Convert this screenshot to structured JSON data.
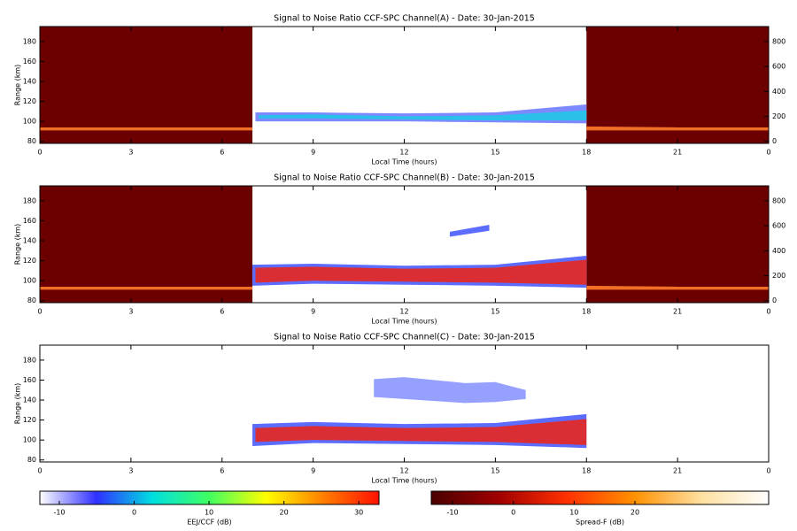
{
  "chart_data": [
    {
      "type": "heatmap",
      "title": "Signal to Noise Ratio CCF-SPC Channel(A) - Date: 30-Jan-2015",
      "xlabel": "Local Time (hours)",
      "ylabel": "Range (km)",
      "xlim": [
        0,
        24
      ],
      "xticks": [
        0,
        3,
        6,
        9,
        12,
        15,
        18,
        21,
        {
          "value": 24,
          "label": "0"
        }
      ],
      "ylim": [
        78,
        195
      ],
      "yticks": [
        80,
        100,
        120,
        140,
        160,
        180
      ],
      "y2lim": [
        -16,
        920
      ],
      "y2ticks": [
        0,
        200,
        400,
        600,
        800
      ],
      "regions": [
        {
          "x": [
            0,
            7
          ],
          "color": "#6b0000"
        },
        {
          "x": [
            18,
            24
          ],
          "color": "#6b0000"
        }
      ],
      "bands": [
        {
          "color": "#ff7a2a",
          "x": [
            0,
            3,
            7
          ],
          "lower": [
            91,
            91,
            91
          ],
          "upper": [
            94,
            94,
            94
          ]
        },
        {
          "color": "#ff7a2a",
          "x": [
            18,
            21,
            24
          ],
          "lower": [
            91,
            91,
            91
          ],
          "upper": [
            95,
            94,
            94
          ]
        },
        {
          "color": "#6f7cff",
          "x": [
            7.1,
            9,
            12,
            15,
            18
          ],
          "lower": [
            100,
            100,
            100,
            99,
            98
          ],
          "upper": [
            109,
            109,
            108,
            109,
            117
          ]
        },
        {
          "color": "#20c8e8",
          "x": [
            7.2,
            9,
            12,
            15,
            18
          ],
          "lower": [
            103,
            103,
            102,
            101,
            101
          ],
          "upper": [
            106,
            107,
            105,
            106,
            111
          ]
        }
      ]
    },
    {
      "type": "heatmap",
      "title": "Signal to Noise Ratio CCF-SPC Channel(B) - Date: 30-Jan-2015",
      "xlabel": "Local Time (hours)",
      "ylabel": "Range (km)",
      "xlim": [
        0,
        24
      ],
      "xticks": [
        0,
        3,
        6,
        9,
        12,
        15,
        18,
        21,
        {
          "value": 24,
          "label": "0"
        }
      ],
      "ylim": [
        78,
        195
      ],
      "yticks": [
        80,
        100,
        120,
        140,
        160,
        180
      ],
      "y2lim": [
        -16,
        920
      ],
      "y2ticks": [
        0,
        200,
        400,
        600,
        800
      ],
      "regions": [
        {
          "x": [
            0,
            7
          ],
          "color": "#6b0000"
        },
        {
          "x": [
            18,
            24
          ],
          "color": "#6b0000"
        }
      ],
      "bands": [
        {
          "color": "#ff7a2a",
          "x": [
            0,
            3,
            7
          ],
          "lower": [
            91,
            91,
            91
          ],
          "upper": [
            94,
            94,
            94
          ]
        },
        {
          "color": "#ff7a2a",
          "x": [
            18,
            21,
            24
          ],
          "lower": [
            91,
            91,
            91
          ],
          "upper": [
            95,
            94,
            94
          ]
        },
        {
          "color": "#4a5cff",
          "x": [
            7,
            9,
            12,
            15,
            18
          ],
          "lower": [
            95,
            97,
            96,
            95,
            93
          ],
          "upper": [
            116,
            117,
            115,
            116,
            125
          ]
        },
        {
          "color": "#e8281e",
          "x": [
            7.1,
            9,
            12,
            15,
            18
          ],
          "lower": [
            98,
            100,
            99,
            98,
            96
          ],
          "upper": [
            113,
            114,
            112,
            113,
            121
          ]
        },
        {
          "color": "#4a5cff",
          "x": [
            13.5,
            14.8
          ],
          "lower": [
            144,
            150
          ],
          "upper": [
            149,
            156
          ]
        }
      ]
    },
    {
      "type": "heatmap",
      "title": "Signal to Noise Ratio CCF-SPC Channel(C) - Date: 30-Jan-2015",
      "xlabel": "Local Time (hours)",
      "ylabel": "Range (km)",
      "xlim": [
        0,
        24
      ],
      "xticks": [
        0,
        3,
        6,
        9,
        12,
        15,
        18,
        21,
        {
          "value": 24,
          "label": "0"
        }
      ],
      "ylim": [
        78,
        195
      ],
      "yticks": [
        80,
        100,
        120,
        140,
        160,
        180
      ],
      "regions": [],
      "bands": [
        {
          "color": "#8a96ff",
          "x": [
            11,
            12,
            13,
            14,
            15,
            16
          ],
          "lower": [
            143,
            141,
            139,
            137,
            138,
            141
          ],
          "upper": [
            161,
            163,
            160,
            157,
            158,
            150
          ]
        },
        {
          "color": "#4a5cff",
          "x": [
            7,
            9,
            12,
            15,
            18
          ],
          "lower": [
            94,
            97,
            96,
            95,
            92
          ],
          "upper": [
            116,
            118,
            116,
            117,
            126
          ]
        },
        {
          "color": "#e8281e",
          "x": [
            7.1,
            9,
            12,
            15,
            18
          ],
          "lower": [
            98,
            100,
            99,
            98,
            95
          ],
          "upper": [
            112,
            114,
            112,
            113,
            121
          ]
        }
      ]
    },
    {
      "type": "colorbar",
      "label": "EEJ/CCF (dB)",
      "lim": [
        -12.6,
        32.7
      ],
      "ticks": [
        -10,
        0,
        10,
        20,
        30
      ],
      "colors": [
        "#ffffff",
        "#3030ff",
        "#00e0e0",
        "#40ff60",
        "#ffff00",
        "#ff8000",
        "#ff1000"
      ]
    },
    {
      "type": "colorbar",
      "label": "Spread-F (dB)",
      "lim": [
        -13.5,
        42
      ],
      "ticks": [
        -10,
        0,
        10,
        20
      ],
      "colors": [
        "#4a0000",
        "#a00000",
        "#ff3000",
        "#ff9000",
        "#ffe0a0",
        "#ffffff"
      ]
    }
  ]
}
